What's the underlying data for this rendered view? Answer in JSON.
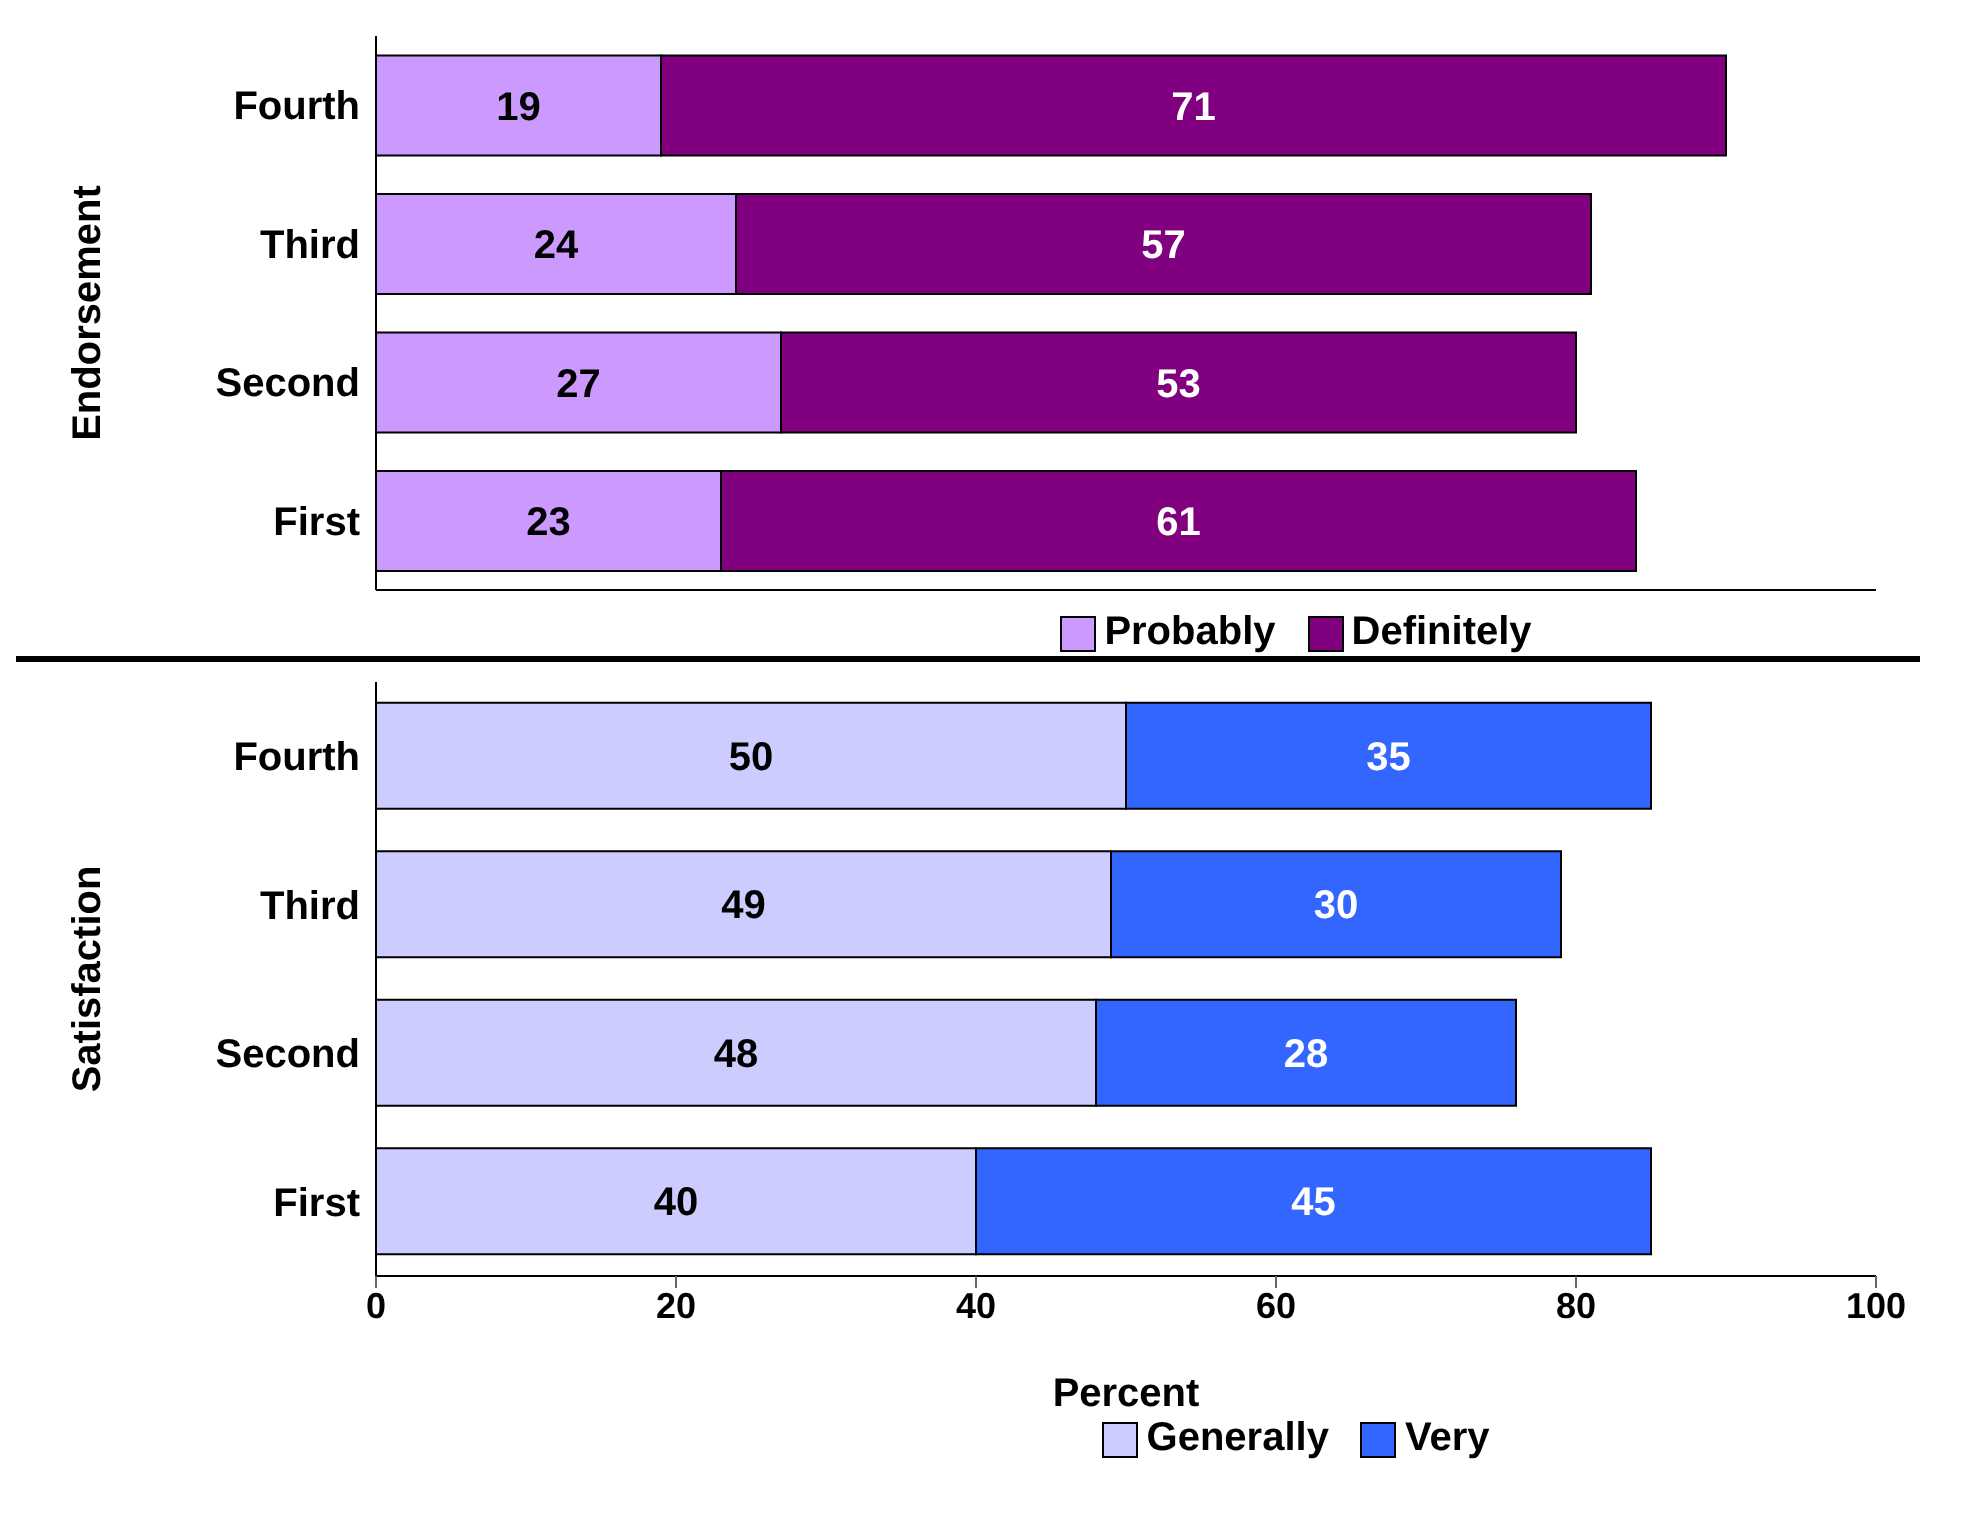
{
  "chart_data": [
    {
      "type": "bar",
      "orientation": "horizontal",
      "stacked": true,
      "ylabel": "Endorsement",
      "categories": [
        "Fourth",
        "Third",
        "Second",
        "First"
      ],
      "xlim": [
        0,
        100
      ],
      "xticks": [
        0,
        20,
        40,
        60,
        80,
        100
      ],
      "tick_labels": "y",
      "data_labels": true,
      "legend": "bottom",
      "grid": false,
      "series": [
        {
          "name": "Probably",
          "color": "#cc99ff",
          "values": [
            19,
            24,
            27,
            23
          ]
        },
        {
          "name": "Definitely",
          "color": "#800080",
          "values": [
            71,
            57,
            53,
            61
          ]
        }
      ]
    },
    {
      "type": "bar",
      "orientation": "horizontal",
      "stacked": true,
      "ylabel": "Satisfaction",
      "xlabel": "Percent",
      "categories": [
        "Fourth",
        "Third",
        "Second",
        "First"
      ],
      "xlim": [
        0,
        100
      ],
      "xticks": [
        0,
        20,
        40,
        60,
        80,
        100
      ],
      "data_labels": true,
      "legend": "bottom",
      "grid": false,
      "series": [
        {
          "name": "Generally",
          "color": "#ccccff",
          "values": [
            50,
            49,
            48,
            40
          ]
        },
        {
          "name": "Very",
          "color": "#3366ff",
          "values": [
            35,
            30,
            28,
            45
          ]
        }
      ]
    }
  ]
}
